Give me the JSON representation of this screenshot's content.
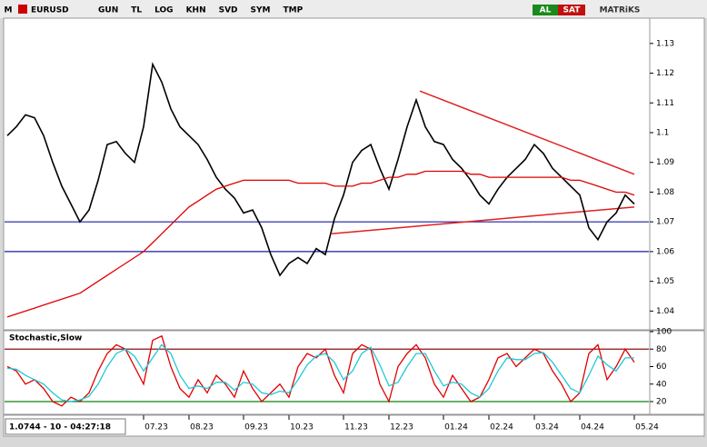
{
  "toolbar": {
    "logo": "M",
    "symbol": "EURUSD",
    "buttons": [
      "GUN",
      "TL",
      "LOG",
      "KHN",
      "SVD",
      "SYM",
      "TMP"
    ],
    "buy": "AL",
    "sell": "SAT",
    "brand": "MATRiKS"
  },
  "status": "1.0744 - 10 - 04:27:18",
  "chart_data": [
    {
      "type": "line",
      "xlim": [
        0,
        69
      ],
      "xticks": [
        {
          "value": 15,
          "label": "07.23"
        },
        {
          "value": 20,
          "label": "08.23"
        },
        {
          "value": 26,
          "label": "09.23"
        },
        {
          "value": 31,
          "label": "10.23"
        },
        {
          "value": 37,
          "label": "11.23"
        },
        {
          "value": 42,
          "label": "12.23"
        },
        {
          "value": 48,
          "label": "01.24"
        },
        {
          "value": 53,
          "label": "02.24"
        },
        {
          "value": 58,
          "label": "03.24"
        },
        {
          "value": 63,
          "label": "04.24"
        },
        {
          "value": 69,
          "label": "05.24"
        }
      ],
      "ylim": [
        1.034,
        1.1385
      ],
      "yticks": [
        1.04,
        1.05,
        1.06,
        1.07,
        1.08,
        1.09,
        1.1,
        1.11,
        1.12,
        1.13
      ],
      "series": [
        {
          "color": "#000000",
          "values": [
            1.099,
            1.102,
            1.106,
            1.105,
            1.099,
            1.09,
            1.082,
            1.076,
            1.07,
            1.074,
            1.084,
            1.096,
            1.097,
            1.093,
            1.09,
            1.102,
            1.123,
            1.117,
            1.108,
            1.102,
            1.099,
            1.096,
            1.091,
            1.085,
            1.081,
            1.078,
            1.073,
            1.074,
            1.068,
            1.059,
            1.052,
            1.056,
            1.058,
            1.056,
            1.061,
            1.059,
            1.071,
            1.079,
            1.09,
            1.094,
            1.096,
            1.088,
            1.081,
            1.091,
            1.102,
            1.111,
            1.102,
            1.097,
            1.096,
            1.091,
            1.088,
            1.084,
            1.079,
            1.076,
            1.081,
            1.085,
            1.088,
            1.091,
            1.096,
            1.093,
            1.088,
            1.085,
            1.082,
            1.079,
            1.068,
            1.064,
            1.07,
            1.073,
            1.079,
            1.076
          ]
        },
        {
          "color": "#e00000",
          "values": [
            1.038,
            1.039,
            1.04,
            1.041,
            1.042,
            1.043,
            1.044,
            1.045,
            1.046,
            1.048,
            1.05,
            1.052,
            1.054,
            1.056,
            1.058,
            1.06,
            1.063,
            1.066,
            1.069,
            1.072,
            1.075,
            1.077,
            1.079,
            1.081,
            1.082,
            1.083,
            1.084,
            1.084,
            1.084,
            1.084,
            1.084,
            1.084,
            1.083,
            1.083,
            1.083,
            1.083,
            1.082,
            1.082,
            1.082,
            1.083,
            1.083,
            1.084,
            1.085,
            1.085,
            1.086,
            1.086,
            1.087,
            1.087,
            1.087,
            1.087,
            1.087,
            1.086,
            1.086,
            1.085,
            1.085,
            1.085,
            1.085,
            1.085,
            1.085,
            1.085,
            1.085,
            1.085,
            1.084,
            1.084,
            1.083,
            1.082,
            1.081,
            1.08,
            1.08,
            1.079
          ]
        }
      ],
      "hlines": [
        {
          "value": 1.07,
          "color": "#1a1aa8"
        },
        {
          "value": 1.06,
          "color": "#1a1aa8"
        }
      ],
      "trendlines": [
        {
          "x": [
            45.4,
            69
          ],
          "y": [
            1.114,
            1.086
          ],
          "color": "#e02020"
        },
        {
          "x": [
            35.7,
            69
          ],
          "y": [
            1.066,
            1.075
          ],
          "color": "#e02020"
        }
      ]
    },
    {
      "type": "line",
      "title": "Stochastic,Slow",
      "xlim": [
        0,
        69
      ],
      "ylim": [
        6.5,
        100
      ],
      "yticks": [
        20,
        40,
        60,
        80,
        100
      ],
      "series": [
        {
          "color": "#e00000",
          "values": [
            60,
            55,
            40,
            45,
            35,
            20,
            15,
            25,
            20,
            30,
            55,
            75,
            85,
            80,
            60,
            40,
            90,
            95,
            60,
            35,
            25,
            45,
            30,
            50,
            40,
            25,
            55,
            35,
            20,
            30,
            40,
            25,
            60,
            75,
            70,
            80,
            50,
            30,
            75,
            85,
            80,
            40,
            20,
            60,
            75,
            85,
            70,
            40,
            25,
            50,
            35,
            20,
            25,
            45,
            70,
            75,
            60,
            70,
            80,
            75,
            55,
            40,
            20,
            30,
            75,
            85,
            45,
            60,
            80,
            65
          ]
        },
        {
          "color": "#20c8d8",
          "values": [
            58,
            57,
            50,
            45,
            40,
            30,
            22,
            20,
            22,
            26,
            40,
            60,
            75,
            80,
            72,
            55,
            70,
            85,
            75,
            50,
            35,
            38,
            35,
            42,
            42,
            33,
            42,
            40,
            30,
            28,
            32,
            30,
            45,
            62,
            72,
            75,
            65,
            45,
            55,
            75,
            82,
            62,
            38,
            42,
            60,
            75,
            75,
            55,
            38,
            42,
            40,
            30,
            25,
            35,
            55,
            70,
            68,
            68,
            75,
            76,
            65,
            50,
            35,
            30,
            50,
            72,
            62,
            55,
            70,
            70
          ]
        }
      ],
      "hlines": [
        {
          "value": 80,
          "color": "#8b1010"
        },
        {
          "value": 20,
          "color": "#108010"
        }
      ]
    }
  ]
}
